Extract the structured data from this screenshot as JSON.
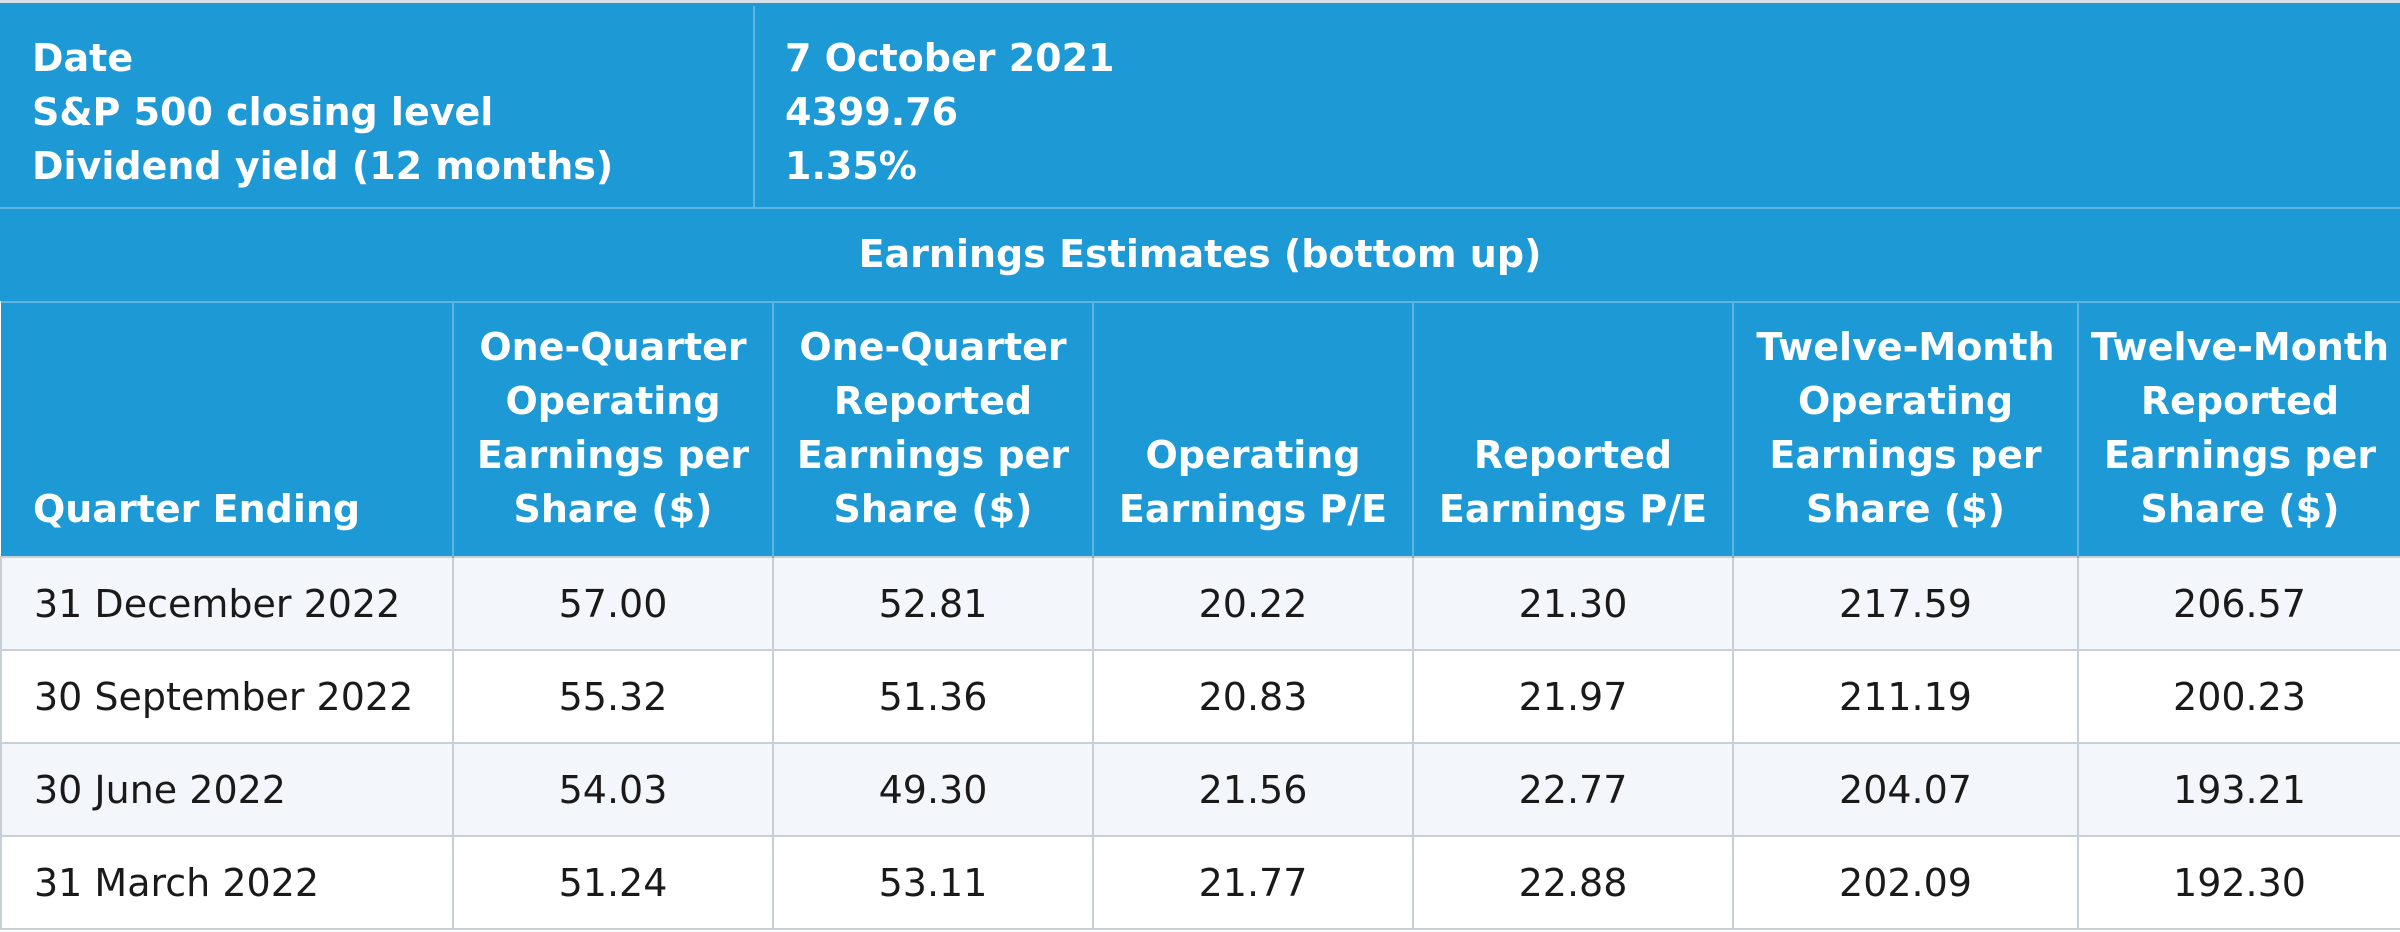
{
  "info": {
    "labels": [
      "Date",
      "S&P 500 closing level",
      "Dividend yield (12 months)"
    ],
    "values": [
      "7 October 2021",
      "4399.76",
      "1.35%"
    ]
  },
  "section_title": "Earnings Estimates (bottom up)",
  "table": {
    "headers": [
      [
        "Quarter Ending"
      ],
      [
        "One-Quarter",
        "Operating",
        "Earnings per",
        "Share ($)"
      ],
      [
        "One-Quarter",
        "Reported",
        "Earnings per",
        "Share ($)"
      ],
      [
        "Operating",
        "Earnings P/E"
      ],
      [
        "Reported",
        "Earnings P/E"
      ],
      [
        "Twelve-Month",
        "Operating",
        "Earnings per",
        "Share ($)"
      ],
      [
        "Twelve-Month",
        "Reported",
        "Earnings per",
        "Share ($)"
      ]
    ],
    "rows": [
      [
        "31 December 2022",
        "57.00",
        "52.81",
        "20.22",
        "21.30",
        "217.59",
        "206.57"
      ],
      [
        "30 September 2022",
        "55.32",
        "51.36",
        "20.83",
        "21.97",
        "211.19",
        "200.23"
      ],
      [
        "30 June 2022",
        "54.03",
        "49.30",
        "21.56",
        "22.77",
        "204.07",
        "193.21"
      ],
      [
        "31 March 2022",
        "51.24",
        "53.11",
        "21.77",
        "22.88",
        "202.09",
        "192.30"
      ]
    ]
  },
  "colors": {
    "header_blue": "#1d99d6",
    "row_alt": "#f3f7fc",
    "grid": "#c9cfd6"
  }
}
